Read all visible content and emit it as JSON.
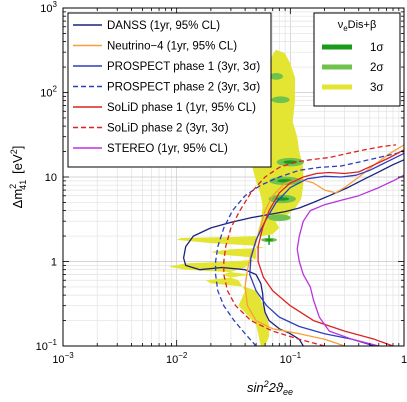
{
  "chart_data": {
    "type": "line",
    "xlabel_main": "sin",
    "xlabel_sup": "2",
    "xlabel_rest": "2ϑ",
    "xlabel_sub": "ee",
    "ylabel_main": "Δm",
    "ylabel_sup": "2",
    "ylabel_sub": "41",
    "ylabel_unit": "[eV",
    "ylabel_unit_sup": "2",
    "ylabel_unit_end": "]",
    "xscale": "log",
    "yscale": "log",
    "xlim": [
      0.001,
      1
    ],
    "ylim": [
      0.1,
      1000
    ],
    "x_ticks": [
      {
        "value": 0.001,
        "base": "10",
        "exp": "−3"
      },
      {
        "value": 0.01,
        "base": "10",
        "exp": "−2"
      },
      {
        "value": 0.1,
        "base": "10",
        "exp": "−1"
      },
      {
        "value": 1,
        "base": "1",
        "exp": ""
      }
    ],
    "y_ticks": [
      {
        "value": 0.1,
        "base": "10",
        "exp": "−1"
      },
      {
        "value": 1,
        "base": "1",
        "exp": ""
      },
      {
        "value": 10,
        "base": "10",
        "exp": ""
      },
      {
        "value": 100,
        "base": "10",
        "exp": "2"
      },
      {
        "value": 1000,
        "base": "10",
        "exp": "3"
      }
    ],
    "grid": true,
    "legend_position": "top-left",
    "series": [
      {
        "name": "DANSS (1yr, 95% CL)",
        "color": "#1a237e",
        "dash": false,
        "points": [
          [
            0.13,
            0.1
          ],
          [
            0.12,
            0.12
          ],
          [
            0.1,
            0.14
          ],
          [
            0.08,
            0.16
          ],
          [
            0.065,
            0.2
          ],
          [
            0.06,
            0.25
          ],
          [
            0.058,
            0.32
          ],
          [
            0.057,
            0.42
          ],
          [
            0.055,
            0.55
          ],
          [
            0.05,
            0.7
          ],
          [
            0.04,
            0.8
          ],
          [
            0.025,
            0.85
          ],
          [
            0.016,
            0.8
          ],
          [
            0.012,
            0.9
          ],
          [
            0.0115,
            1.1
          ],
          [
            0.012,
            1.5
          ],
          [
            0.014,
            2.0
          ],
          [
            0.02,
            2.5
          ],
          [
            0.03,
            2.9
          ],
          [
            0.045,
            3.3
          ],
          [
            0.065,
            3.6
          ],
          [
            0.09,
            3.9
          ],
          [
            0.12,
            4.3
          ],
          [
            0.16,
            5.0
          ],
          [
            0.22,
            6.0
          ],
          [
            0.32,
            7.5
          ],
          [
            0.45,
            9.5
          ],
          [
            0.6,
            11.5
          ],
          [
            0.8,
            14
          ],
          [
            1.0,
            16
          ]
        ]
      },
      {
        "name": "Neutrino−4 (1yr, 95% CL)",
        "color": "#f5a03c",
        "dash": false,
        "points": [
          [
            0.3,
            0.1
          ],
          [
            0.2,
            0.12
          ],
          [
            0.12,
            0.14
          ],
          [
            0.07,
            0.16
          ],
          [
            0.05,
            0.2
          ],
          [
            0.042,
            0.3
          ],
          [
            0.04,
            0.5
          ],
          [
            0.042,
            0.8
          ],
          [
            0.045,
            1.2
          ],
          [
            0.05,
            1.7
          ],
          [
            0.055,
            2.6
          ],
          [
            0.06,
            4
          ],
          [
            0.07,
            6
          ],
          [
            0.09,
            8.5
          ],
          [
            0.12,
            9.5
          ],
          [
            0.16,
            8.5
          ],
          [
            0.2,
            7
          ],
          [
            0.25,
            6.5
          ],
          [
            0.3,
            7.5
          ],
          [
            0.4,
            10
          ],
          [
            0.55,
            14
          ],
          [
            0.75,
            19
          ],
          [
            1.0,
            24
          ]
        ]
      },
      {
        "name": "PROSPECT phase 1 (3yr, 3σ)",
        "color": "#2e3fbd",
        "dash": false,
        "points": [
          [
            0.55,
            0.1
          ],
          [
            0.35,
            0.12
          ],
          [
            0.2,
            0.14
          ],
          [
            0.12,
            0.17
          ],
          [
            0.08,
            0.22
          ],
          [
            0.062,
            0.3
          ],
          [
            0.05,
            0.45
          ],
          [
            0.044,
            0.7
          ],
          [
            0.045,
            1.1
          ],
          [
            0.05,
            1.8
          ],
          [
            0.06,
            3
          ],
          [
            0.075,
            5
          ],
          [
            0.1,
            7.5
          ],
          [
            0.14,
            9.5
          ],
          [
            0.2,
            10.2
          ],
          [
            0.28,
            10
          ],
          [
            0.38,
            10.5
          ],
          [
            0.5,
            12
          ],
          [
            0.7,
            15
          ],
          [
            1.0,
            19
          ]
        ]
      },
      {
        "name": "PROSPECT phase 2 (3yr, 3σ)",
        "color": "#2e3fbd",
        "dash": true,
        "points": [
          [
            0.05,
            0.1
          ],
          [
            0.04,
            0.14
          ],
          [
            0.032,
            0.2
          ],
          [
            0.026,
            0.3
          ],
          [
            0.023,
            0.45
          ],
          [
            0.022,
            0.7
          ],
          [
            0.022,
            1.0
          ],
          [
            0.023,
            1.5
          ],
          [
            0.026,
            2.5
          ],
          [
            0.031,
            4
          ],
          [
            0.04,
            6
          ],
          [
            0.055,
            8
          ],
          [
            0.08,
            10
          ],
          [
            0.12,
            12
          ],
          [
            0.18,
            13
          ],
          [
            0.28,
            13.5
          ],
          [
            0.4,
            15
          ],
          [
            0.6,
            17
          ],
          [
            1.0,
            20
          ]
        ]
      },
      {
        "name": "SoLiD phase 1 (1yr, 95% CL)",
        "color": "#dd2222",
        "dash": false,
        "points": [
          [
            0.8,
            0.1
          ],
          [
            0.55,
            0.12
          ],
          [
            0.3,
            0.15
          ],
          [
            0.16,
            0.2
          ],
          [
            0.1,
            0.3
          ],
          [
            0.07,
            0.45
          ],
          [
            0.058,
            0.65
          ],
          [
            0.052,
            1.0
          ],
          [
            0.052,
            1.5
          ],
          [
            0.057,
            2.5
          ],
          [
            0.065,
            4
          ],
          [
            0.08,
            6.5
          ],
          [
            0.1,
            8.5
          ],
          [
            0.13,
            10
          ],
          [
            0.17,
            11
          ],
          [
            0.22,
            11.3
          ],
          [
            0.3,
            11
          ],
          [
            0.4,
            11.5
          ],
          [
            0.55,
            14
          ],
          [
            0.75,
            17
          ],
          [
            1.0,
            21
          ]
        ]
      },
      {
        "name": "SoLiD phase 2 (3yr, 3σ)",
        "color": "#dd2222",
        "dash": true,
        "points": [
          [
            0.2,
            0.1
          ],
          [
            0.12,
            0.12
          ],
          [
            0.07,
            0.15
          ],
          [
            0.045,
            0.2
          ],
          [
            0.033,
            0.3
          ],
          [
            0.028,
            0.45
          ],
          [
            0.026,
            0.7
          ],
          [
            0.026,
            1.0
          ],
          [
            0.027,
            1.5
          ],
          [
            0.03,
            2.5
          ],
          [
            0.036,
            4
          ],
          [
            0.045,
            6.5
          ],
          [
            0.06,
            10
          ],
          [
            0.08,
            13
          ],
          [
            0.11,
            15
          ],
          [
            0.15,
            16
          ],
          [
            0.22,
            17
          ],
          [
            0.32,
            19
          ],
          [
            0.45,
            21
          ],
          [
            0.65,
            23
          ],
          [
            0.85,
            24
          ]
        ]
      },
      {
        "name": "STEREO (1yr, 95% CL)",
        "color": "#bb33dd",
        "dash": false,
        "points": [
          [
            0.6,
            0.1
          ],
          [
            0.35,
            0.12
          ],
          [
            0.22,
            0.15
          ],
          [
            0.18,
            0.22
          ],
          [
            0.16,
            0.35
          ],
          [
            0.15,
            0.5
          ],
          [
            0.13,
            0.7
          ],
          [
            0.12,
            1.0
          ],
          [
            0.115,
            1.4
          ],
          [
            0.12,
            2.0
          ],
          [
            0.13,
            3.0
          ],
          [
            0.15,
            4.0
          ],
          [
            0.2,
            4.7
          ],
          [
            0.28,
            5.3
          ],
          [
            0.4,
            6.0
          ],
          [
            0.6,
            7.5
          ],
          [
            0.8,
            9
          ],
          [
            1.0,
            10.5
          ]
        ]
      }
    ],
    "regions": {
      "title": "ν",
      "title_sub": "e",
      "title_rest": "Dis+β",
      "levels": [
        {
          "name": "1σ",
          "color": "#1a9a1a"
        },
        {
          "name": "2σ",
          "color": "#6fc24b"
        },
        {
          "name": "3σ",
          "color": "#e3e532"
        }
      ],
      "best_fit": {
        "x": 0.065,
        "y": 1.8,
        "color": "#1a9a1a"
      },
      "sigma3_outline": [
        [
          0.075,
          320
        ],
        [
          0.09,
          290
        ],
        [
          0.1,
          220
        ],
        [
          0.11,
          150
        ],
        [
          0.11,
          80
        ],
        [
          0.105,
          45
        ],
        [
          0.115,
          30
        ],
        [
          0.12,
          20
        ],
        [
          0.13,
          13
        ],
        [
          0.13,
          8
        ],
        [
          0.125,
          5.5
        ],
        [
          0.11,
          4.2
        ],
        [
          0.095,
          3.6
        ],
        [
          0.075,
          3.2
        ],
        [
          0.075,
          2.9
        ],
        [
          0.08,
          2.5
        ],
        [
          0.07,
          2.1
        ],
        [
          0.055,
          2.0
        ],
        [
          0.03,
          1.95
        ],
        [
          0.011,
          1.9
        ],
        [
          0.01,
          1.8
        ],
        [
          0.02,
          1.65
        ],
        [
          0.045,
          1.55
        ],
        [
          0.06,
          1.45
        ],
        [
          0.03,
          1.4
        ],
        [
          0.02,
          1.3
        ],
        [
          0.025,
          1.2
        ],
        [
          0.045,
          1.12
        ],
        [
          0.05,
          1.05
        ],
        [
          0.03,
          1.0
        ],
        [
          0.012,
          0.95
        ],
        [
          0.0085,
          0.87
        ],
        [
          0.012,
          0.8
        ],
        [
          0.03,
          0.75
        ],
        [
          0.045,
          0.7
        ],
        [
          0.028,
          0.64
        ],
        [
          0.018,
          0.6
        ],
        [
          0.02,
          0.55
        ],
        [
          0.04,
          0.5
        ],
        [
          0.05,
          0.45
        ],
        [
          0.055,
          0.35
        ],
        [
          0.06,
          0.25
        ],
        [
          0.065,
          0.18
        ],
        [
          0.065,
          0.13
        ],
        [
          0.06,
          0.1
        ],
        [
          0.055,
          0.1
        ],
        [
          0.05,
          0.18
        ],
        [
          0.035,
          0.3
        ],
        [
          0.04,
          0.45
        ],
        [
          0.035,
          0.6
        ],
        [
          0.025,
          0.7
        ],
        [
          0.04,
          0.85
        ],
        [
          0.05,
          1.1
        ],
        [
          0.05,
          1.6
        ],
        [
          0.052,
          2.3
        ],
        [
          0.055,
          3
        ],
        [
          0.057,
          4.5
        ],
        [
          0.055,
          6
        ],
        [
          0.05,
          9
        ],
        [
          0.045,
          15
        ],
        [
          0.042,
          25
        ],
        [
          0.045,
          45
        ],
        [
          0.05,
          80
        ],
        [
          0.058,
          140
        ],
        [
          0.065,
          230
        ],
        [
          0.072,
          300
        ]
      ],
      "sigma2_blobs": [
        {
          "x": 0.075,
          "y": 155,
          "rx": 0.06,
          "ry": 0.04
        },
        {
          "x": 0.082,
          "y": 82,
          "rx": 0.08,
          "ry": 0.04
        },
        {
          "x": 0.1,
          "y": 15,
          "rx": 0.12,
          "ry": 0.05
        },
        {
          "x": 0.09,
          "y": 9,
          "rx": 0.14,
          "ry": 0.05
        },
        {
          "x": 0.085,
          "y": 5.5,
          "rx": 0.12,
          "ry": 0.05
        },
        {
          "x": 0.08,
          "y": 3.3,
          "rx": 0.1,
          "ry": 0.04
        },
        {
          "x": 0.065,
          "y": 1.8,
          "rx": 0.07,
          "ry": 0.025
        }
      ],
      "sigma1_blobs": [
        {
          "x": 0.1,
          "y": 15,
          "rx": 0.06,
          "ry": 0.02
        },
        {
          "x": 0.09,
          "y": 9,
          "rx": 0.07,
          "ry": 0.02
        },
        {
          "x": 0.085,
          "y": 5.5,
          "rx": 0.06,
          "ry": 0.02
        },
        {
          "x": 0.065,
          "y": 1.8,
          "rx": 0.03,
          "ry": 0.012
        }
      ]
    }
  }
}
